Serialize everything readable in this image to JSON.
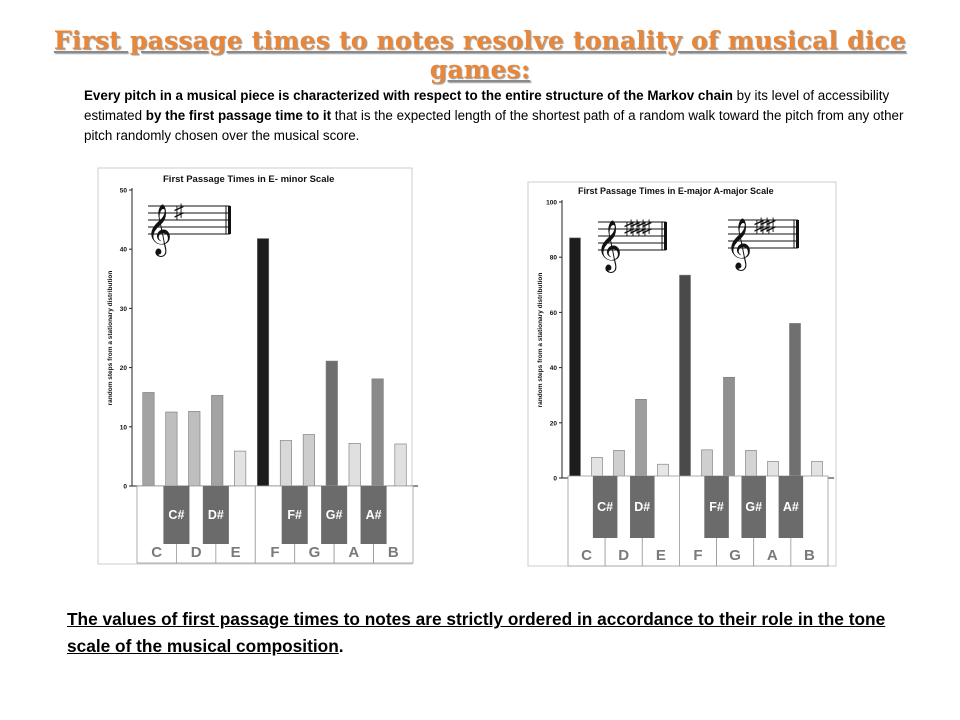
{
  "title": "First passage times to notes resolve tonality of musical dice games:",
  "intro": {
    "part1": "Every pitch in a musical piece is characterized with respect to the entire structure of the Markov chain",
    "part2": " by its level of accessibility estimated ",
    "part3": "by the first passage time to it",
    "part4": " that is the expected length of the shortest path of a random walk toward the pitch from any other pitch randomly chosen over the musical score."
  },
  "conclusion": {
    "underlined": "The values of first passage times to notes are strictly ordered in accordance to their role in the tone scale of the musical composition",
    "tail": "."
  },
  "colors": {
    "title": "#e8873a",
    "black_key": "#6b6b6b",
    "dark_bar": "#222222"
  },
  "chart_data": [
    {
      "type": "bar",
      "title": "First Passage Times in E- minor Scale",
      "ylabel": "random steps from a stationary distribution",
      "ylim": [
        0,
        50
      ],
      "yticks": [
        0,
        10,
        20,
        30,
        40,
        50
      ],
      "categories": [
        "C",
        "C#",
        "D",
        "D#",
        "E",
        "F",
        "F#",
        "G",
        "G#",
        "A",
        "A#",
        "B"
      ],
      "values": [
        15.8,
        12.5,
        12.6,
        15.3,
        5.9,
        41.8,
        7.7,
        8.7,
        21.1,
        7.2,
        18.1,
        7.1
      ],
      "bar_colors": [
        "#a3a3a3",
        "#bebebe",
        "#bebebe",
        "#a3a3a3",
        "#e3e3e3",
        "#1c1c1c",
        "#d8d8d8",
        "#cdcdcd",
        "#6e6e6e",
        "#e0e0e0",
        "#8a8a8a",
        "#e0e0e0"
      ],
      "key_signature": "♯",
      "white_keys": [
        "C",
        "D",
        "E",
        "F",
        "G",
        "A",
        "B"
      ],
      "black_keys": [
        "C#",
        "D#",
        "F#",
        "G#",
        "A#"
      ]
    },
    {
      "type": "bar",
      "title": "First Passage Times in E-major A-major Scale",
      "ylabel": "random steps from a stationary distribution",
      "ylim": [
        0,
        100
      ],
      "yticks": [
        0,
        20,
        40,
        60,
        80,
        100
      ],
      "categories": [
        "C",
        "C#",
        "D",
        "D#",
        "E",
        "F",
        "F#",
        "G",
        "G#",
        "A",
        "A#",
        "B"
      ],
      "values": [
        87,
        7.5,
        10,
        28.5,
        5,
        73.5,
        10.2,
        36.5,
        10,
        6,
        56,
        6
      ],
      "bar_colors": [
        "#1c1c1c",
        "#e3e3e3",
        "#cfcfcf",
        "#9e9e9e",
        "#e6e6e6",
        "#4a4a4a",
        "#cfcfcf",
        "#909090",
        "#d3d3d3",
        "#e3e3e3",
        "#707070",
        "#e3e3e3"
      ],
      "key_signatures": [
        "♯♯♯♯",
        "♯♯♯"
      ],
      "white_keys": [
        "C",
        "D",
        "E",
        "F",
        "G",
        "A",
        "B"
      ],
      "black_keys": [
        "C#",
        "D#",
        "F#",
        "G#",
        "A#"
      ]
    }
  ]
}
